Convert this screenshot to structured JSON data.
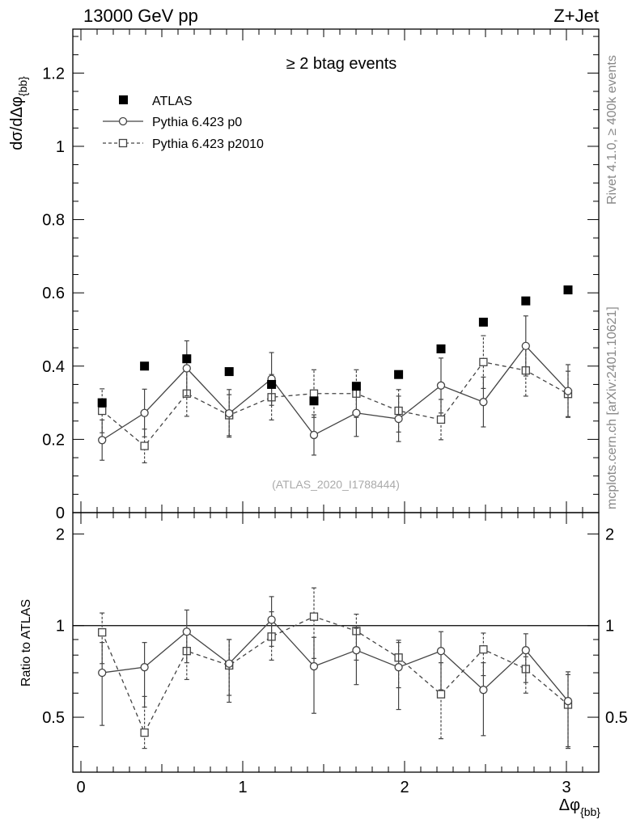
{
  "header": {
    "energy_label": "13000 GeV pp",
    "process_label": "Z+Jet"
  },
  "side_text": {
    "rivet": "Rivet 4.1.0, ≥ 400k events",
    "mcplots": "mcplots.cern.ch [arXiv:2401.10621]"
  },
  "chart_data": [
    {
      "panel": "main",
      "type": "scatter",
      "title": "≥ 2 btag events",
      "watermark": "(ATLAS_2020_I1788444)",
      "ylabel": "dσ/dΔφ_{bb}",
      "xlabel": "",
      "xlim": [
        -0.05,
        3.2
      ],
      "ylim": [
        0,
        1.32
      ],
      "yticks": [
        "0",
        "0.2",
        "0.4",
        "0.6",
        "0.8",
        "1",
        "1.2"
      ],
      "legend_position": "top-left",
      "x": [
        0.131,
        0.393,
        0.654,
        0.916,
        1.178,
        1.44,
        1.702,
        1.963,
        2.225,
        2.487,
        2.749,
        3.01
      ],
      "series": [
        {
          "name": "ATLAS",
          "style": "filled-square",
          "values": [
            0.3,
            0.4,
            0.42,
            0.385,
            0.35,
            0.305,
            0.345,
            0.377,
            0.447,
            0.52,
            0.578,
            0.608
          ]
        },
        {
          "name": "Pythia 6.423 p0",
          "style": "solid-circle",
          "values": [
            0.198,
            0.272,
            0.394,
            0.271,
            0.365,
            0.212,
            0.272,
            0.256,
            0.347,
            0.302,
            0.455,
            0.332
          ],
          "err": [
            0.055,
            0.065,
            0.075,
            0.065,
            0.072,
            0.055,
            0.064,
            0.062,
            0.075,
            0.068,
            0.082,
            0.072
          ]
        },
        {
          "name": "Pythia 6.423 p2010",
          "style": "dashed-square",
          "values": [
            0.278,
            0.182,
            0.325,
            0.266,
            0.315,
            0.325,
            0.325,
            0.278,
            0.254,
            0.411,
            0.388,
            0.324
          ],
          "err": [
            0.06,
            0.046,
            0.062,
            0.056,
            0.062,
            0.065,
            0.065,
            0.058,
            0.055,
            0.072,
            0.07,
            0.062
          ]
        }
      ]
    },
    {
      "panel": "ratio",
      "type": "scatter",
      "ylabel": "Ratio to ATLAS",
      "xlabel": "Δφ_{bb}",
      "xlim": [
        -0.05,
        3.2
      ],
      "ylim": [
        0.33,
        2.35
      ],
      "yticks": [
        "0.5",
        "1",
        "2"
      ],
      "xticks": [
        "0",
        "1",
        "2",
        "3"
      ],
      "reference_line": 1,
      "x": [
        0.131,
        0.393,
        0.654,
        0.916,
        1.178,
        1.44,
        1.702,
        1.963,
        2.225,
        2.487,
        2.749,
        3.01
      ],
      "series": [
        {
          "name": "Pythia 6.423 p0",
          "style": "solid-circle",
          "values": [
            0.7,
            0.73,
            0.955,
            0.75,
            1.045,
            0.735,
            0.83,
            0.73,
            0.825,
            0.615,
            0.83,
            0.565
          ],
          "err_low": [
            0.23,
            0.19,
            0.2,
            0.19,
            0.19,
            0.22,
            0.19,
            0.2,
            0.21,
            0.18,
            0.18,
            0.17
          ],
          "err_high": [
            0.18,
            0.15,
            0.17,
            0.15,
            0.2,
            0.18,
            0.15,
            0.15,
            0.13,
            0.14,
            0.11,
            0.14
          ]
        },
        {
          "name": "Pythia 6.423 p2010",
          "style": "dashed-square",
          "values": [
            0.95,
            0.445,
            0.825,
            0.74,
            0.92,
            1.07,
            0.96,
            0.785,
            0.595,
            0.835,
            0.72,
            0.55
          ],
          "err_low": [
            0.2,
            0.05,
            0.16,
            0.15,
            0.15,
            0.29,
            0.19,
            0.16,
            0.17,
            0.15,
            0.12,
            0.15
          ],
          "err_high": [
            0.15,
            0.14,
            0.15,
            0.16,
            0.19,
            0.26,
            0.13,
            0.11,
            0.16,
            0.11,
            0.07,
            0.14
          ]
        }
      ]
    }
  ]
}
